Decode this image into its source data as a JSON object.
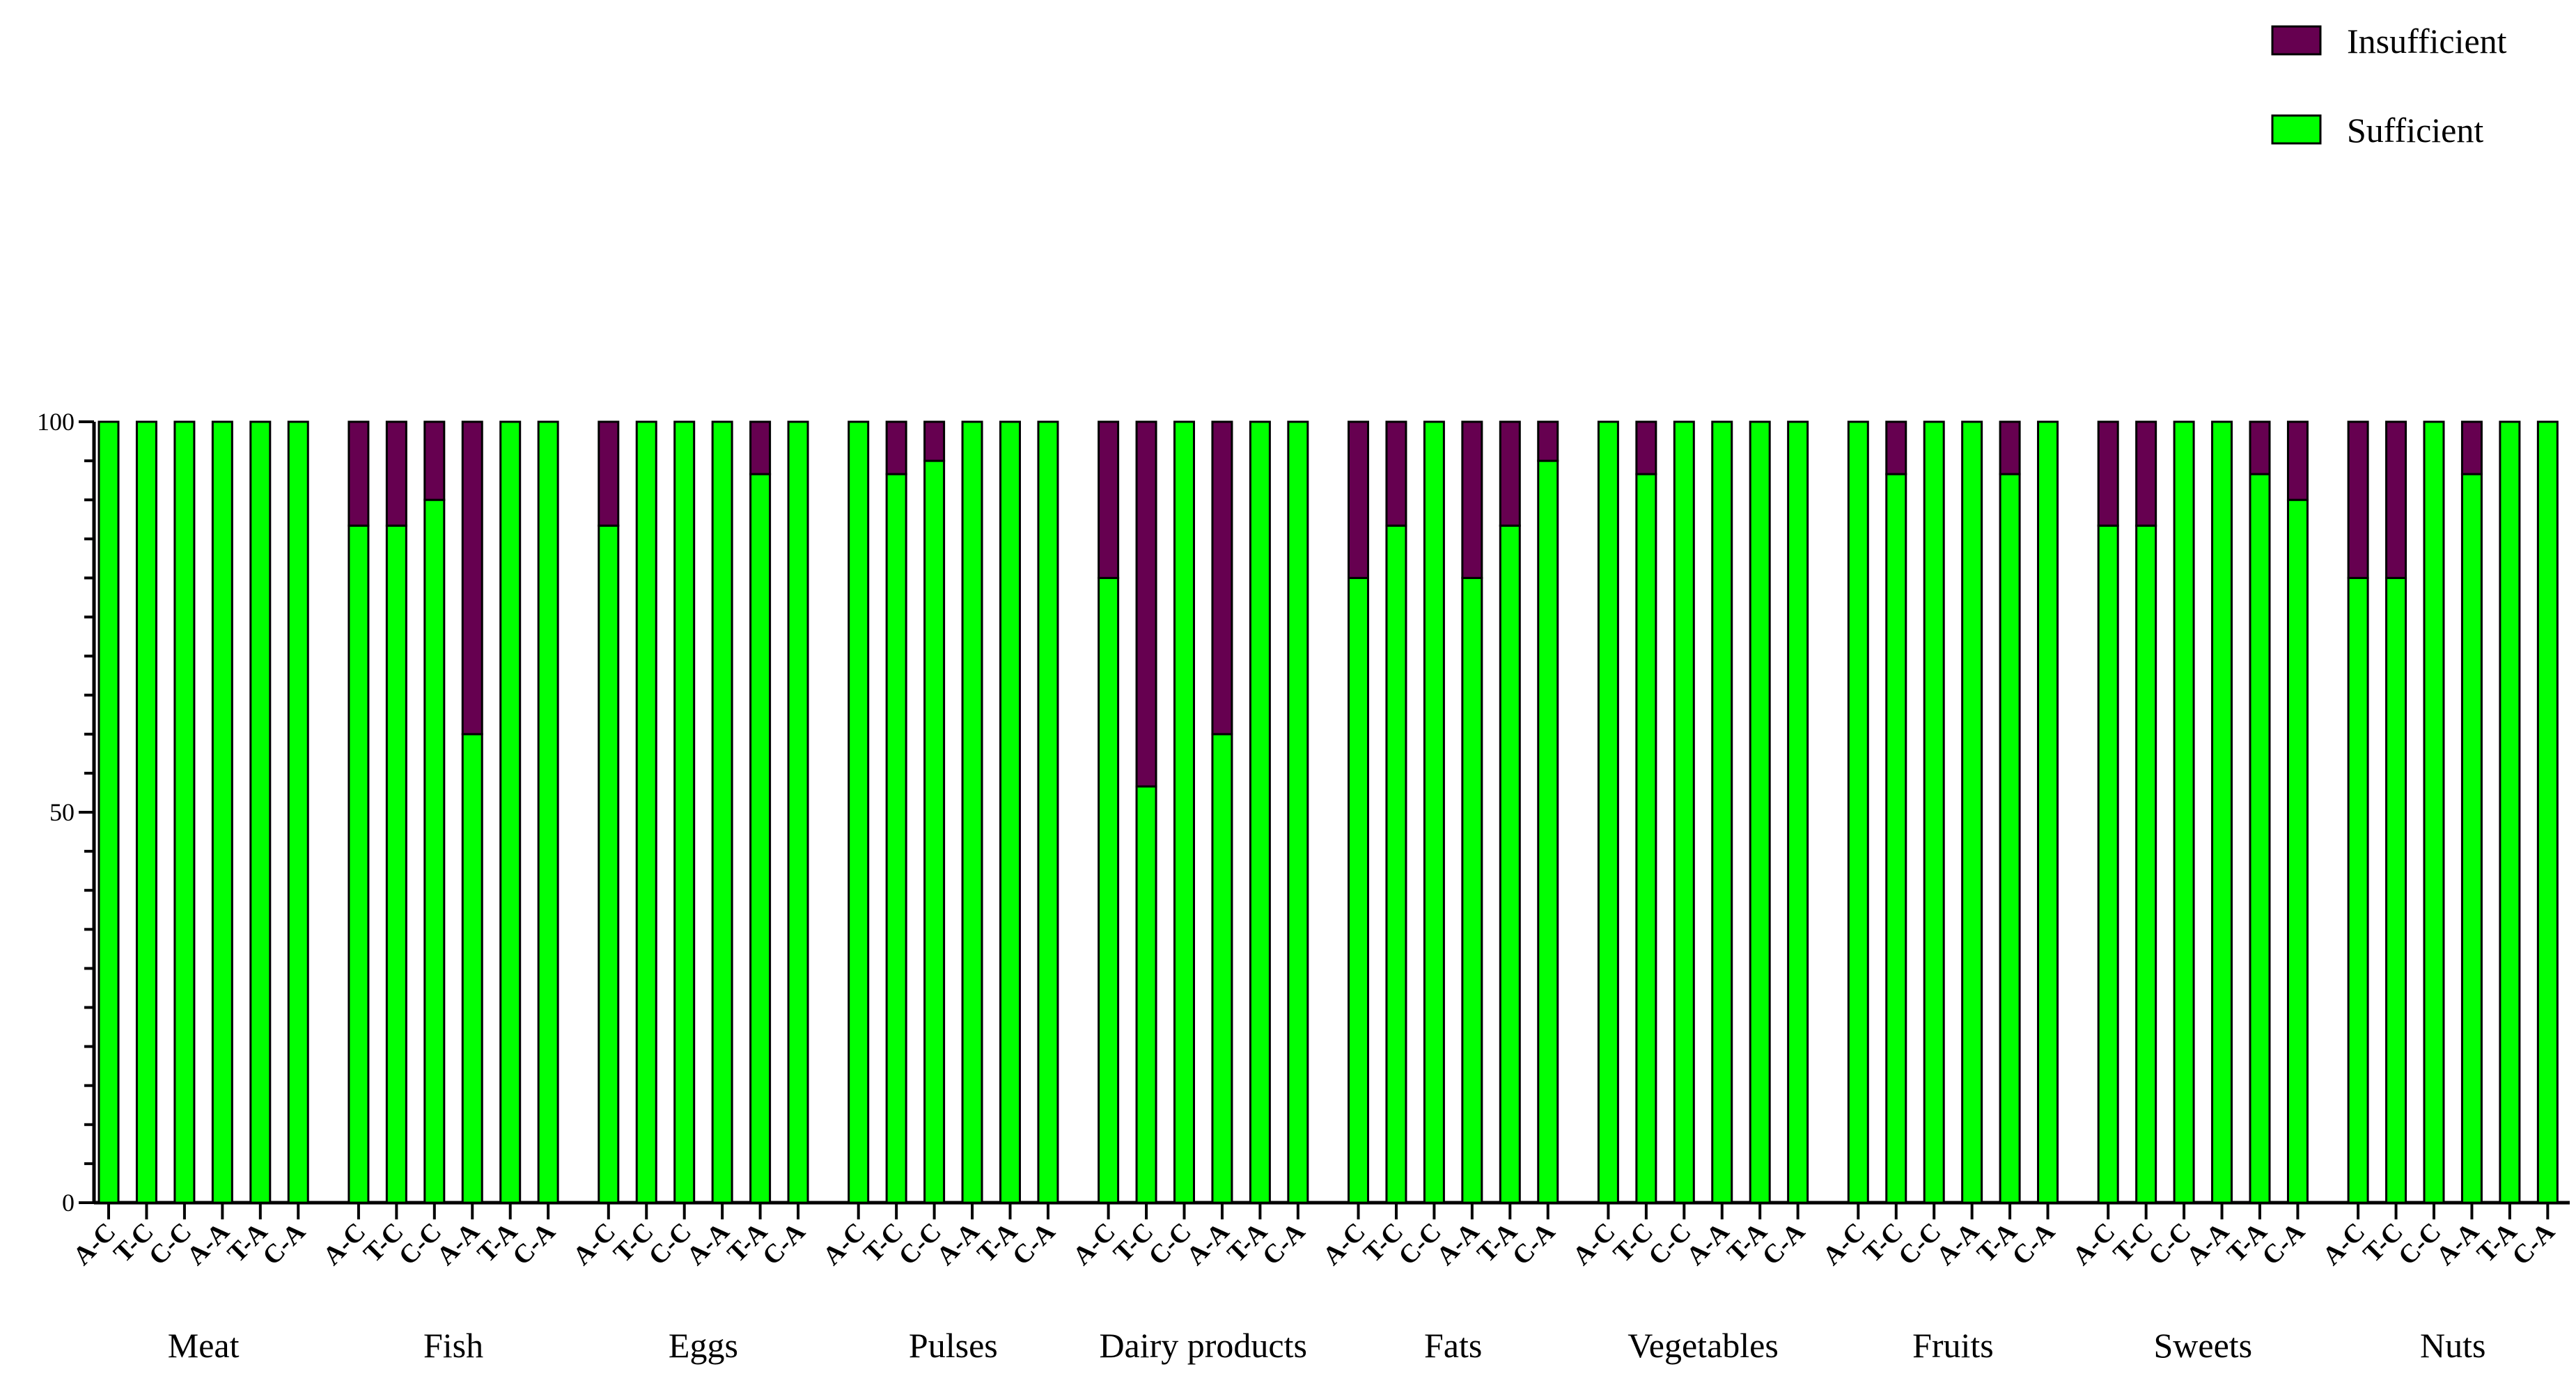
{
  "chart_data": {
    "type": "bar",
    "stacked": true,
    "ylim": [
      0,
      100
    ],
    "yticks": [
      0,
      50,
      100
    ],
    "legend": {
      "position": "top-right",
      "entries": [
        {
          "name": "Insufficient",
          "color": "#660050"
        },
        {
          "name": "Sufficient",
          "color": "#00FF00"
        }
      ]
    },
    "groups": [
      {
        "name": "Meat",
        "categories": [
          "A-C",
          "T-C",
          "C-C",
          "A-A",
          "T-A",
          "C-A"
        ],
        "sufficient": [
          100,
          100,
          100,
          100,
          100,
          100
        ]
      },
      {
        "name": "Fish",
        "categories": [
          "A-C",
          "T-C",
          "C-C",
          "A-A",
          "T-A",
          "C-A"
        ],
        "sufficient": [
          86.7,
          86.7,
          90,
          60,
          100,
          100
        ]
      },
      {
        "name": "Eggs",
        "categories": [
          "A-C",
          "T-C",
          "C-C",
          "A-A",
          "T-A",
          "C-A"
        ],
        "sufficient": [
          86.7,
          100,
          100,
          100,
          93.3,
          100
        ]
      },
      {
        "name": "Pulses",
        "categories": [
          "A-C",
          "T-C",
          "C-C",
          "A-A",
          "T-A",
          "C-A"
        ],
        "sufficient": [
          100,
          93.3,
          95,
          100,
          100,
          100
        ]
      },
      {
        "name": "Dairy products",
        "categories": [
          "A-C",
          "T-C",
          "C-C",
          "A-A",
          "T-A",
          "C-A"
        ],
        "sufficient": [
          80,
          53.3,
          100,
          60,
          100,
          100
        ]
      },
      {
        "name": "Fats",
        "categories": [
          "A-C",
          "T-C",
          "C-C",
          "A-A",
          "T-A",
          "C-A"
        ],
        "sufficient": [
          80,
          86.7,
          100,
          80,
          86.7,
          95
        ]
      },
      {
        "name": "Vegetables",
        "categories": [
          "A-C",
          "T-C",
          "C-C",
          "A-A",
          "T-A",
          "C-A"
        ],
        "sufficient": [
          100,
          93.3,
          100,
          100,
          100,
          100
        ]
      },
      {
        "name": "Fruits",
        "categories": [
          "A-C",
          "T-C",
          "C-C",
          "A-A",
          "T-A",
          "C-A"
        ],
        "sufficient": [
          100,
          93.3,
          100,
          100,
          93.3,
          100
        ]
      },
      {
        "name": "Sweets",
        "categories": [
          "A-C",
          "T-C",
          "C-C",
          "A-A",
          "T-A",
          "C-A"
        ],
        "sufficient": [
          86.7,
          86.7,
          100,
          100,
          93.3,
          90
        ]
      },
      {
        "name": "Nuts",
        "categories": [
          "A-C",
          "T-C",
          "C-C",
          "A-A",
          "T-A",
          "C-A"
        ],
        "sufficient": [
          80,
          80,
          100,
          93.3,
          100,
          100
        ]
      }
    ]
  }
}
